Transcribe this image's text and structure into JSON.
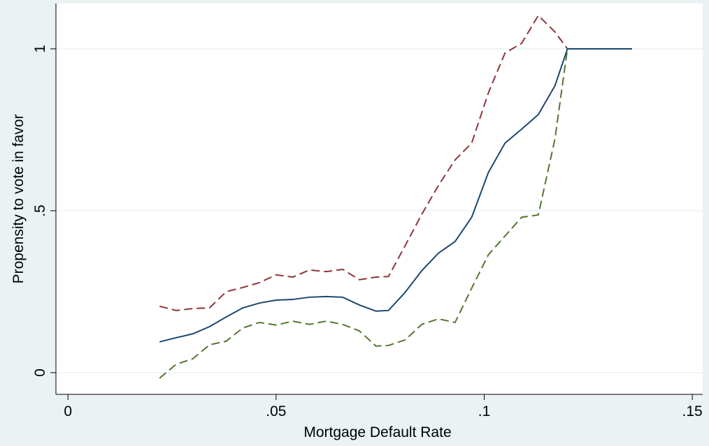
{
  "chart_data": {
    "type": "line",
    "xlabel": "Mortgage Default Rate",
    "ylabel": "Propensity to vote in favor",
    "x": [
      0.022,
      0.026,
      0.03,
      0.034,
      0.038,
      0.042,
      0.046,
      0.05,
      0.054,
      0.058,
      0.062,
      0.066,
      0.07,
      0.074,
      0.077,
      0.081,
      0.085,
      0.089,
      0.093,
      0.097,
      0.101,
      0.105,
      0.109,
      0.113,
      0.117,
      0.12,
      0.1355
    ],
    "series": [
      {
        "color": "#90353b",
        "dash": "12 6",
        "values": [
          0.205,
          0.192,
          0.198,
          0.2,
          0.25,
          0.263,
          0.278,
          0.302,
          0.295,
          0.317,
          0.312,
          0.319,
          0.287,
          0.295,
          0.297,
          0.392,
          0.489,
          0.578,
          0.657,
          0.709,
          0.864,
          0.987,
          1.017,
          1.103,
          1.052,
          1.0,
          1.0
        ]
      },
      {
        "color": "#55752f",
        "dash": "12 6",
        "values": [
          -0.017,
          0.026,
          0.043,
          0.086,
          0.097,
          0.138,
          0.155,
          0.147,
          0.159,
          0.149,
          0.159,
          0.149,
          0.129,
          0.082,
          0.084,
          0.101,
          0.149,
          0.166,
          0.155,
          0.261,
          0.364,
          0.422,
          0.48,
          0.487,
          0.722,
          1.0,
          1.0
        ]
      },
      {
        "color": "#1a476f",
        "values": [
          0.095,
          0.108,
          0.12,
          0.142,
          0.172,
          0.2,
          0.215,
          0.224,
          0.226,
          0.233,
          0.235,
          0.233,
          0.209,
          0.19,
          0.192,
          0.248,
          0.315,
          0.369,
          0.405,
          0.48,
          0.618,
          0.709,
          0.752,
          0.797,
          0.886,
          1.0,
          1.0
        ]
      }
    ],
    "xlim": [
      -0.0029,
      0.1525
    ],
    "ylim": [
      -0.067,
      1.14
    ],
    "xticks": [
      0,
      {
        "value": 0.05,
        "label": ".05"
      },
      {
        "value": 0.1,
        "label": ".1"
      },
      {
        "value": 0.15,
        "label": ".15"
      }
    ],
    "yticks": [
      0,
      {
        "value": 0.5,
        "label": ".5"
      },
      1
    ],
    "grid": true
  }
}
